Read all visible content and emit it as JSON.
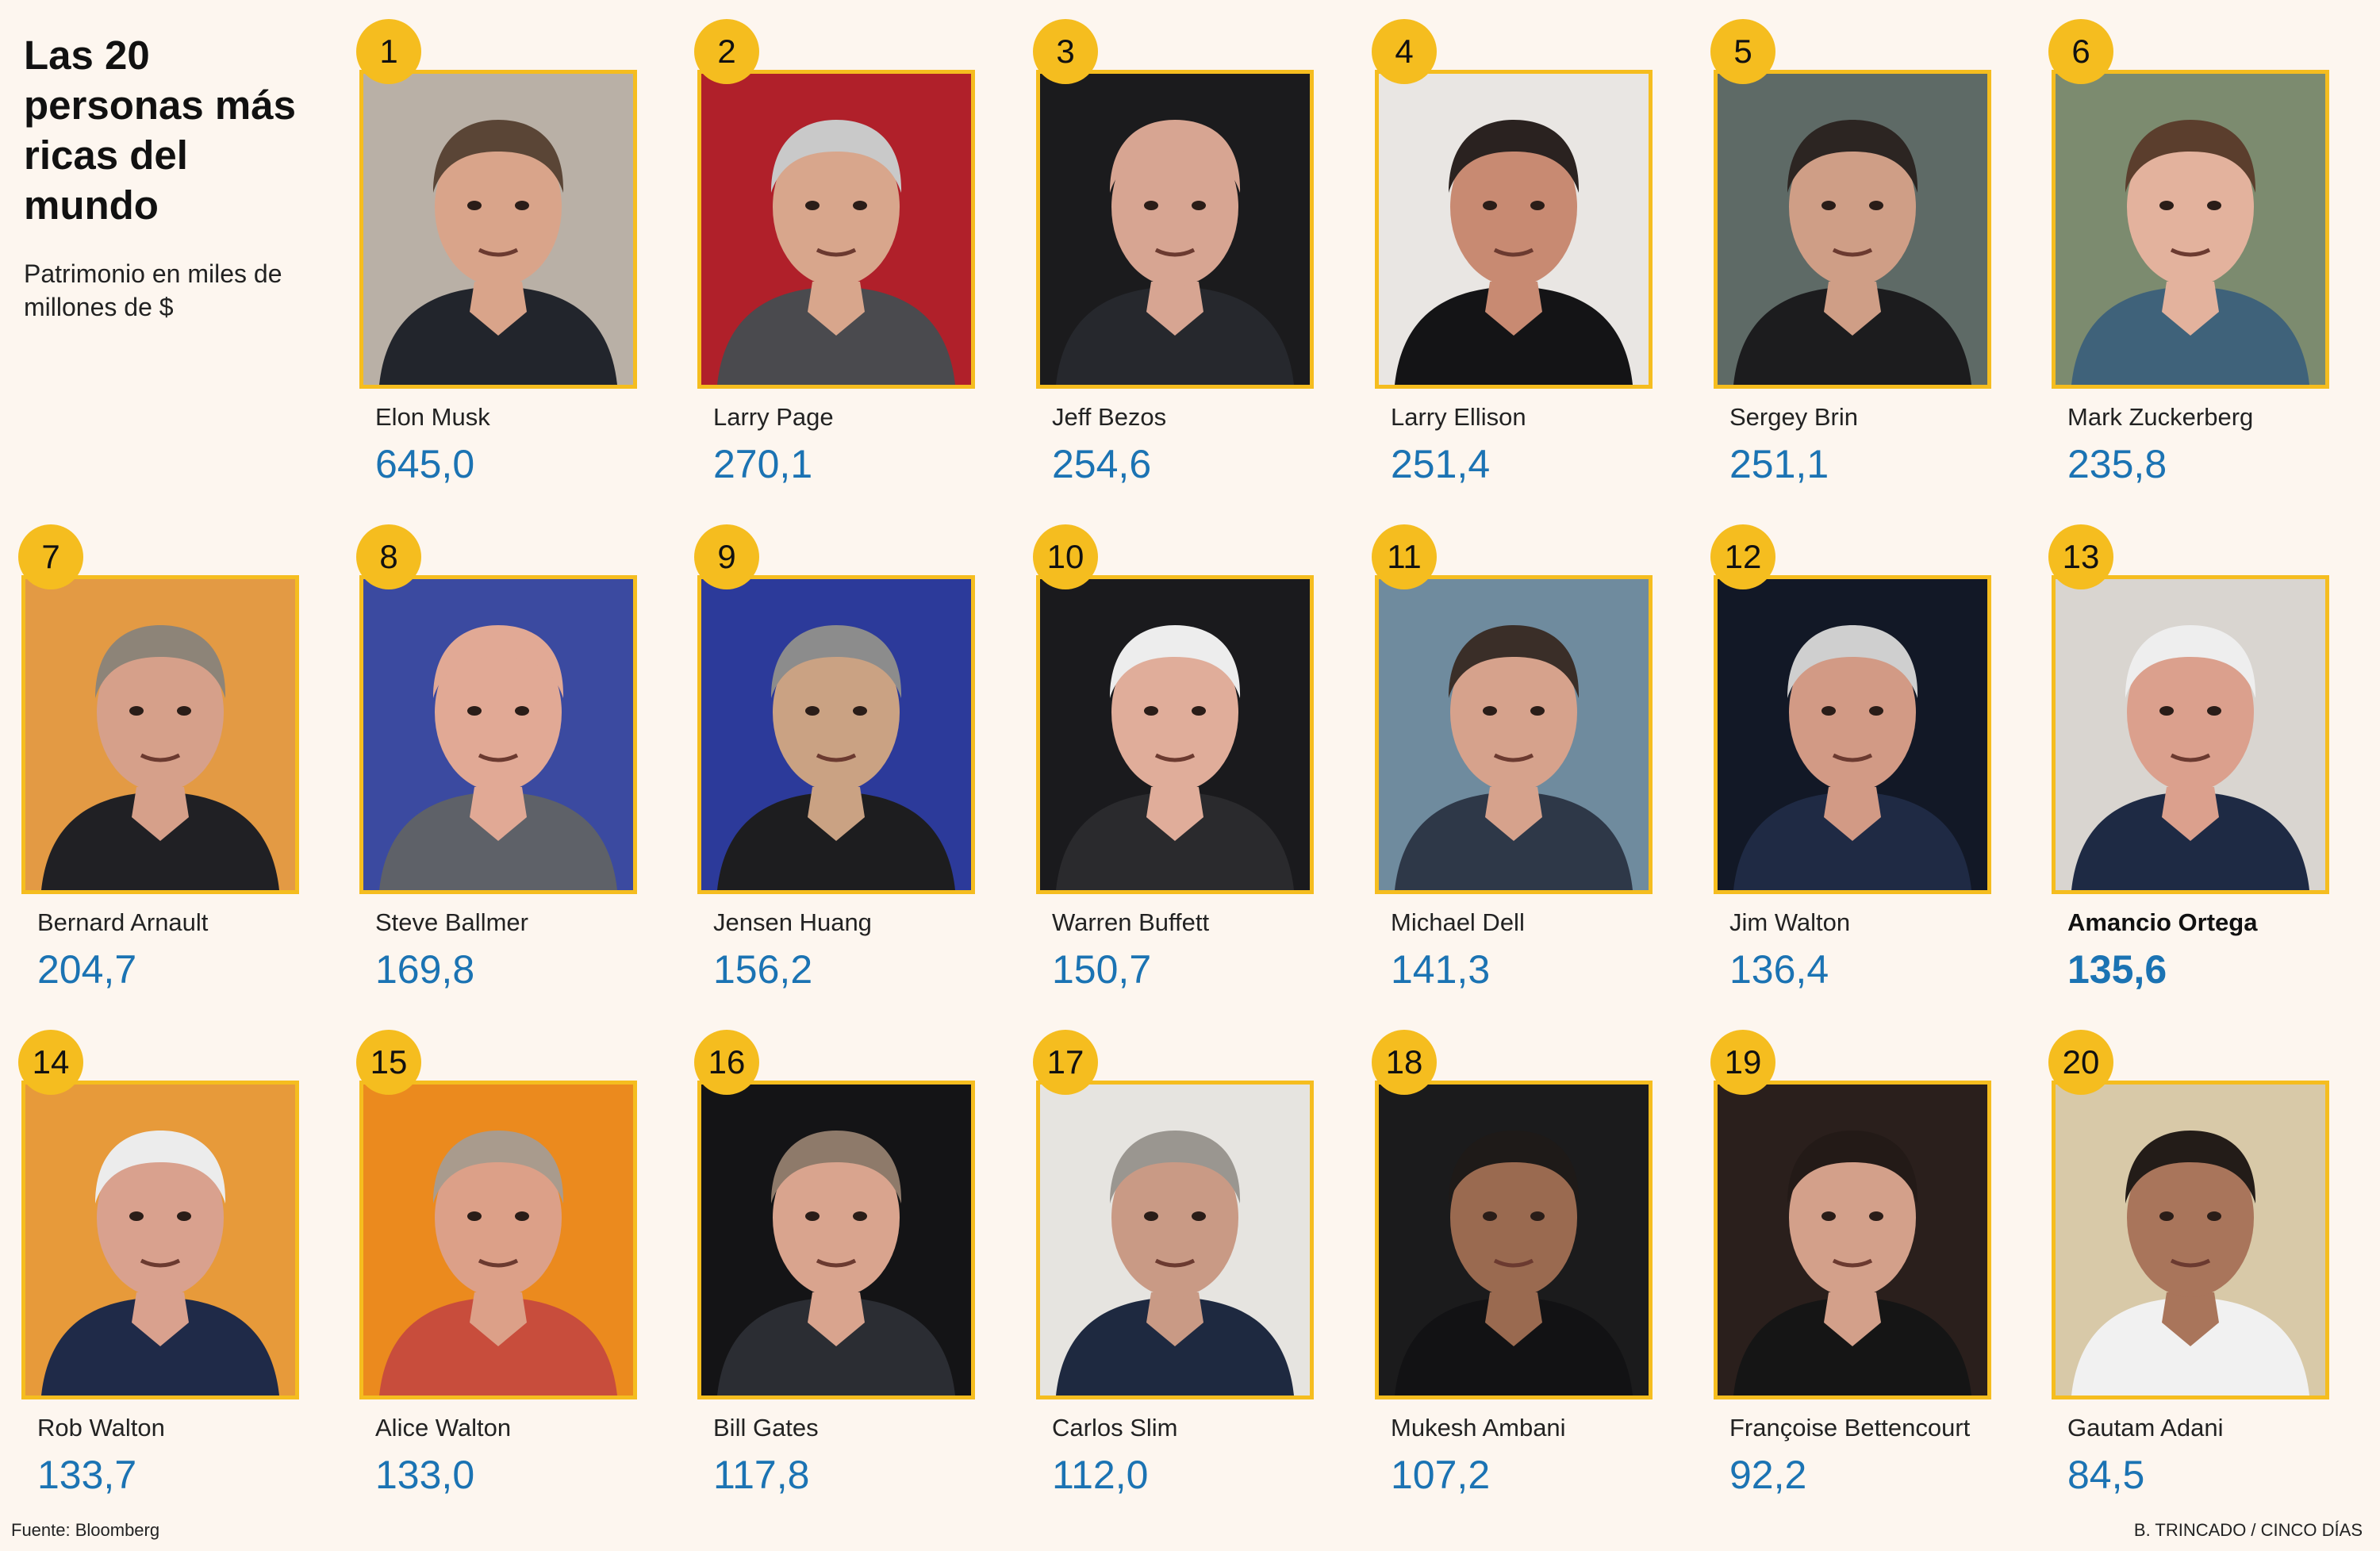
{
  "title": "Las 20 personas más ricas del mundo",
  "subtitle": "Patrimonio en miles de millones de $",
  "source": "Fuente: Bloomberg",
  "credit": "B. TRINCADO / CINCO DÍAS",
  "colors": {
    "badge": "#f5bd1f",
    "frame": "#f5bd1f",
    "value": "#1b73b3",
    "background": "#fdf6ef"
  },
  "people": [
    {
      "rank": "1",
      "name": "Elon Musk",
      "value": "645,0",
      "photo_bg": "#b9b0a6",
      "skin": "#d9a48a",
      "hair": "#5a4536",
      "suit": "#22252c"
    },
    {
      "rank": "2",
      "name": "Larry Page",
      "value": "270,1",
      "photo_bg": "#b0202a",
      "skin": "#d8a68c",
      "hair": "#c9c9c9",
      "suit": "#4a4a4e"
    },
    {
      "rank": "3",
      "name": "Jeff Bezos",
      "value": "254,6",
      "photo_bg": "#1b1b1d",
      "skin": "#d7a592",
      "hair": "#d7a592",
      "suit": "#26282d"
    },
    {
      "rank": "4",
      "name": "Larry Ellison",
      "value": "251,4",
      "photo_bg": "#e9e6e3",
      "skin": "#c88a72",
      "hair": "#2a2220",
      "suit": "#141416"
    },
    {
      "rank": "5",
      "name": "Sergey Brin",
      "value": "251,1",
      "photo_bg": "#5e6a66",
      "skin": "#cf9e86",
      "hair": "#2c2522",
      "suit": "#1c1c1e"
    },
    {
      "rank": "6",
      "name": "Mark Zuckerberg",
      "value": "235,8",
      "photo_bg": "#7c8b6f",
      "skin": "#e3b29d",
      "hair": "#5b3e2d",
      "suit": "#3f627a"
    },
    {
      "rank": "7",
      "name": "Bernard Arnault",
      "value": "204,7",
      "photo_bg": "#e39a44",
      "skin": "#d6a08a",
      "hair": "#8d8478",
      "suit": "#202024"
    },
    {
      "rank": "8",
      "name": "Steve Ballmer",
      "value": "169,8",
      "photo_bg": "#3b4aa0",
      "skin": "#e1a995",
      "hair": "#e1a995",
      "suit": "#5e6168"
    },
    {
      "rank": "9",
      "name": "Jensen Huang",
      "value": "156,2",
      "photo_bg": "#2c3a9a",
      "skin": "#caa283",
      "hair": "#8c8c8c",
      "suit": "#1d1d1f"
    },
    {
      "rank": "10",
      "name": "Warren Buffett",
      "value": "150,7",
      "photo_bg": "#1a1a1d",
      "skin": "#e0ad9a",
      "hair": "#ededed",
      "suit": "#2a2a2d"
    },
    {
      "rank": "11",
      "name": "Michael Dell",
      "value": "141,3",
      "photo_bg": "#6f8b9e",
      "skin": "#d6a28c",
      "hair": "#3a2e28",
      "suit": "#2e3848"
    },
    {
      "rank": "12",
      "name": "Jim Walton",
      "value": "136,4",
      "photo_bg": "#121826",
      "skin": "#d29a85",
      "hair": "#cfcfcf",
      "suit": "#1f2a44"
    },
    {
      "rank": "13",
      "name": "Amancio Ortega",
      "value": "135,6",
      "photo_bg": "#d9d5d0",
      "skin": "#dba08d",
      "hair": "#eeeeee",
      "suit": "#1e2a44"
    },
    {
      "rank": "14",
      "name": "Rob Walton",
      "value": "133,7",
      "photo_bg": "#e79a3a",
      "skin": "#d9a18e",
      "hair": "#ececec",
      "suit": "#1f2a48"
    },
    {
      "rank": "15",
      "name": "Alice Walton",
      "value": "133,0",
      "photo_bg": "#eb8a1e",
      "skin": "#dca088",
      "hair": "#a99b8d",
      "suit": "#c84d3c"
    },
    {
      "rank": "16",
      "name": "Bill Gates",
      "value": "117,8",
      "photo_bg": "#141416",
      "skin": "#d9a48e",
      "hair": "#8e7a6a",
      "suit": "#2b2d33"
    },
    {
      "rank": "17",
      "name": "Carlos Slim",
      "value": "112,0",
      "photo_bg": "#e6e4e0",
      "skin": "#c99a85",
      "hair": "#9a9690",
      "suit": "#1e2940"
    },
    {
      "rank": "18",
      "name": "Mukesh Ambani",
      "value": "107,2",
      "photo_bg": "#1b1b1c",
      "skin": "#9a6a50",
      "hair": "#1e1a18",
      "suit": "#121214"
    },
    {
      "rank": "19",
      "name": "Françoise Bettencourt",
      "value": "92,2",
      "photo_bg": "#2a1f1c",
      "skin": "#d3a08a",
      "hair": "#231a17",
      "suit": "#151515"
    },
    {
      "rank": "20",
      "name": "Gautam Adani",
      "value": "84,5",
      "photo_bg": "#d8c9a8",
      "skin": "#a9755b",
      "hair": "#231c18",
      "suit": "#f1f1f1"
    }
  ],
  "highlight_rank": "13"
}
